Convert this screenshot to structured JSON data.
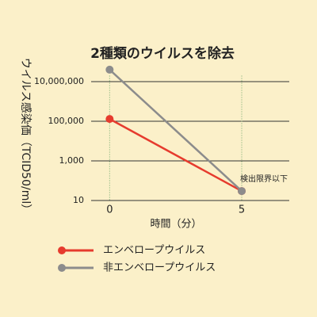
{
  "chart_data": {
    "type": "line",
    "title": "2種類のウイルスを除去",
    "x": [
      0,
      5
    ],
    "series": [
      {
        "name": "エンベロープウイルス",
        "color": "#e63b2e",
        "values": [
          130000,
          30
        ]
      },
      {
        "name": "非エンベロープウイルス",
        "color": "#8c8c8c",
        "values": [
          40000000,
          30
        ]
      }
    ],
    "xlabel": "時間（分）",
    "ylabel": "ウイルス感染価（TCID50/ml）",
    "annotation": "検出限界以下",
    "xlim": [
      -0.7,
      6.8
    ],
    "xticks": [
      0,
      5
    ],
    "ylim": [
      10,
      50000000
    ],
    "log_y": true,
    "yticks": [
      10,
      {
        "value": 1000,
        "label": "1,000"
      },
      {
        "value": 100000,
        "label": "100,000"
      },
      {
        "value": 10000000,
        "label": "10,000,000"
      }
    ],
    "grid": true,
    "legend": "bottom"
  }
}
